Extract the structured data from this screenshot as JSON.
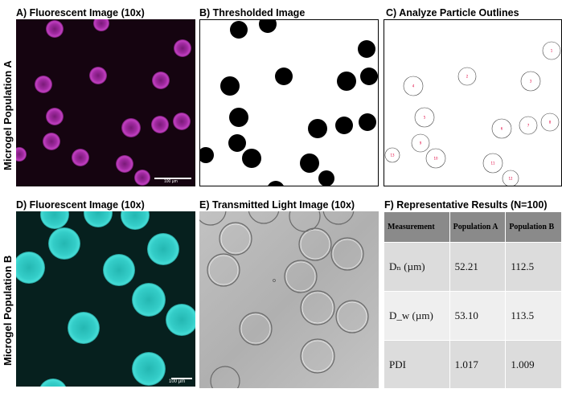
{
  "panels": {
    "a": {
      "label": "A) Fluorescent Image (10x)",
      "scalebar": "100 µm"
    },
    "b": {
      "label": "B) Thresholded Image"
    },
    "c": {
      "label": "C) Analyze Particle Outlines"
    },
    "d": {
      "label": "D) Fluorescent Image (10x)",
      "scalebar": "100 µm"
    },
    "e": {
      "label": "E) Transmitted Light Image (10x)"
    },
    "f": {
      "label": "F) Representative Results (N=100)"
    }
  },
  "rows": {
    "a": "Microgel Population A",
    "b": "Microgel Population B"
  },
  "colors": {
    "magenta_bg": "#150410",
    "magenta_particle": "#b030b0",
    "cyan_bg": "#06201e",
    "cyan_particle": "#2fc7c2",
    "bf_bg": "#b8b8b8",
    "outline_number": "#e0003c"
  },
  "outline_numbers": [
    "1",
    "2",
    "3",
    "4",
    "5",
    "6",
    "7",
    "8",
    "9",
    "10",
    "11",
    "12",
    "13"
  ],
  "table": {
    "headers": [
      "Measurement",
      "Population A",
      "Population B"
    ],
    "rows": [
      {
        "name": "Dₙ (µm)",
        "a": "52.21",
        "b": "112.5"
      },
      {
        "name": "D_w (µm)",
        "a": "53.10",
        "b": "113.5"
      },
      {
        "name": "PDI",
        "a": "1.017",
        "b": "1.009"
      }
    ]
  }
}
